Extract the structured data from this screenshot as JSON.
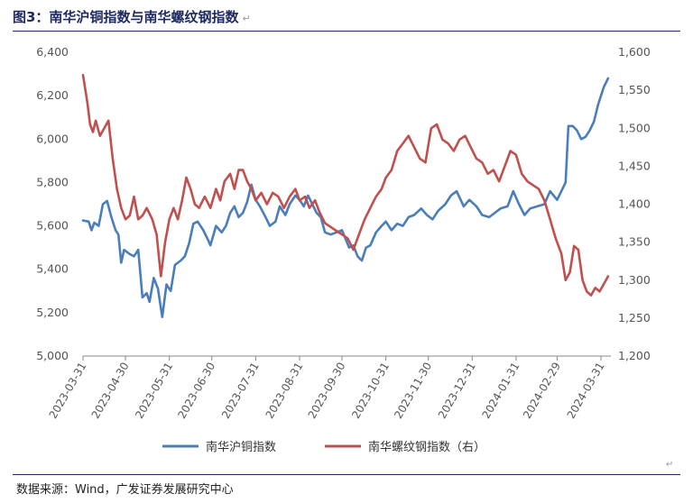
{
  "title": "图3：南华沪铜指数与南华螺纹钢指数",
  "source": "数据来源：Wind，广发证券发展研究中心",
  "para_mark": "↵",
  "chart_data": {
    "type": "line",
    "title": "图3：南华沪铜指数与南华螺纹钢指数",
    "x_ticks": [
      "2023-03-31",
      "2023-04-30",
      "2023-05-31",
      "2023-06-30",
      "2023-07-31",
      "2023-08-31",
      "2023-09-30",
      "2023-10-31",
      "2023-11-30",
      "2023-12-31",
      "2024-01-31",
      "2024-02-29",
      "2024-03-31"
    ],
    "x_range": [
      "2023-03-31",
      "2024-04-07"
    ],
    "y_left": {
      "min": 5000,
      "max": 6400,
      "step": 200,
      "ticks": [
        "5,000",
        "5,200",
        "5,400",
        "5,600",
        "5,800",
        "6,000",
        "6,200",
        "6,400"
      ]
    },
    "y_right": {
      "min": 1200,
      "max": 1600,
      "step": 50,
      "ticks": [
        "1,200",
        "1,250",
        "1,300",
        "1,350",
        "1,400",
        "1,450",
        "1,500",
        "1,550",
        "1,600"
      ]
    },
    "legend_position": "bottom",
    "grid": false,
    "series": [
      {
        "name": "南华沪铜指数",
        "axis": "left",
        "color": "#4a7ebb",
        "points": [
          [
            "2023-03-31",
            5625
          ],
          [
            "2023-04-04",
            5620
          ],
          [
            "2023-04-06",
            5580
          ],
          [
            "2023-04-08",
            5615
          ],
          [
            "2023-04-11",
            5600
          ],
          [
            "2023-04-14",
            5700
          ],
          [
            "2023-04-17",
            5715
          ],
          [
            "2023-04-20",
            5640
          ],
          [
            "2023-04-23",
            5580
          ],
          [
            "2023-04-25",
            5560
          ],
          [
            "2023-04-27",
            5430
          ],
          [
            "2023-04-29",
            5490
          ],
          [
            "2023-05-03",
            5470
          ],
          [
            "2023-05-06",
            5460
          ],
          [
            "2023-05-09",
            5490
          ],
          [
            "2023-05-12",
            5270
          ],
          [
            "2023-05-15",
            5290
          ],
          [
            "2023-05-17",
            5250
          ],
          [
            "2023-05-20",
            5360
          ],
          [
            "2023-05-23",
            5310
          ],
          [
            "2023-05-26",
            5180
          ],
          [
            "2023-05-29",
            5330
          ],
          [
            "2023-06-01",
            5300
          ],
          [
            "2023-06-04",
            5420
          ],
          [
            "2023-06-08",
            5440
          ],
          [
            "2023-06-11",
            5460
          ],
          [
            "2023-06-14",
            5520
          ],
          [
            "2023-06-17",
            5610
          ],
          [
            "2023-06-20",
            5620
          ],
          [
            "2023-06-24",
            5580
          ],
          [
            "2023-06-27",
            5540
          ],
          [
            "2023-06-29",
            5510
          ],
          [
            "2023-07-03",
            5600
          ],
          [
            "2023-07-07",
            5570
          ],
          [
            "2023-07-10",
            5600
          ],
          [
            "2023-07-13",
            5660
          ],
          [
            "2023-07-16",
            5690
          ],
          [
            "2023-07-19",
            5640
          ],
          [
            "2023-07-22",
            5660
          ],
          [
            "2023-07-25",
            5710
          ],
          [
            "2023-07-28",
            5790
          ],
          [
            "2023-07-31",
            5720
          ],
          [
            "2023-08-03",
            5690
          ],
          [
            "2023-08-07",
            5640
          ],
          [
            "2023-08-10",
            5600
          ],
          [
            "2023-08-14",
            5620
          ],
          [
            "2023-08-17",
            5690
          ],
          [
            "2023-08-21",
            5650
          ],
          [
            "2023-08-24",
            5700
          ],
          [
            "2023-08-28",
            5740
          ],
          [
            "2023-08-31",
            5720
          ],
          [
            "2023-09-03",
            5690
          ],
          [
            "2023-09-06",
            5740
          ],
          [
            "2023-09-09",
            5700
          ],
          [
            "2023-09-12",
            5660
          ],
          [
            "2023-09-15",
            5640
          ],
          [
            "2023-09-18",
            5570
          ],
          [
            "2023-09-22",
            5560
          ],
          [
            "2023-09-26",
            5570
          ],
          [
            "2023-09-30",
            5580
          ],
          [
            "2023-10-05",
            5500
          ],
          [
            "2023-10-08",
            5510
          ],
          [
            "2023-10-11",
            5460
          ],
          [
            "2023-10-14",
            5440
          ],
          [
            "2023-10-17",
            5500
          ],
          [
            "2023-10-20",
            5510
          ],
          [
            "2023-10-24",
            5570
          ],
          [
            "2023-10-28",
            5600
          ],
          [
            "2023-10-31",
            5620
          ],
          [
            "2023-11-04",
            5580
          ],
          [
            "2023-11-08",
            5610
          ],
          [
            "2023-11-12",
            5600
          ],
          [
            "2023-11-16",
            5640
          ],
          [
            "2023-11-20",
            5650
          ],
          [
            "2023-11-25",
            5680
          ],
          [
            "2023-11-29",
            5650
          ],
          [
            "2023-12-03",
            5630
          ],
          [
            "2023-12-07",
            5670
          ],
          [
            "2023-12-12",
            5700
          ],
          [
            "2023-12-16",
            5740
          ],
          [
            "2023-12-20",
            5760
          ],
          [
            "2023-12-25",
            5690
          ],
          [
            "2023-12-29",
            5720
          ],
          [
            "2024-01-03",
            5690
          ],
          [
            "2024-01-07",
            5650
          ],
          [
            "2024-01-12",
            5640
          ],
          [
            "2024-01-16",
            5660
          ],
          [
            "2024-01-20",
            5680
          ],
          [
            "2024-01-25",
            5690
          ],
          [
            "2024-01-29",
            5760
          ],
          [
            "2024-02-02",
            5700
          ],
          [
            "2024-02-06",
            5650
          ],
          [
            "2024-02-10",
            5680
          ],
          [
            "2024-02-15",
            5690
          ],
          [
            "2024-02-20",
            5700
          ],
          [
            "2024-02-24",
            5760
          ],
          [
            "2024-02-29",
            5720
          ],
          [
            "2024-03-03",
            5760
          ],
          [
            "2024-03-06",
            5800
          ],
          [
            "2024-03-08",
            6060
          ],
          [
            "2024-03-11",
            6060
          ],
          [
            "2024-03-14",
            6040
          ],
          [
            "2024-03-17",
            6000
          ],
          [
            "2024-03-20",
            6010
          ],
          [
            "2024-03-23",
            6040
          ],
          [
            "2024-03-26",
            6080
          ],
          [
            "2024-03-29",
            6160
          ],
          [
            "2024-04-02",
            6240
          ],
          [
            "2024-04-05",
            6280
          ]
        ]
      },
      {
        "name": "南华螺纹钢指数（右）",
        "axis": "right",
        "color": "#c0504d",
        "points": [
          [
            "2023-03-31",
            1570
          ],
          [
            "2023-04-03",
            1535
          ],
          [
            "2023-04-05",
            1505
          ],
          [
            "2023-04-07",
            1495
          ],
          [
            "2023-04-09",
            1510
          ],
          [
            "2023-04-12",
            1490
          ],
          [
            "2023-04-15",
            1500
          ],
          [
            "2023-04-18",
            1510
          ],
          [
            "2023-04-21",
            1460
          ],
          [
            "2023-04-24",
            1420
          ],
          [
            "2023-04-27",
            1395
          ],
          [
            "2023-04-30",
            1380
          ],
          [
            "2023-05-03",
            1385
          ],
          [
            "2023-05-06",
            1410
          ],
          [
            "2023-05-09",
            1380
          ],
          [
            "2023-05-12",
            1385
          ],
          [
            "2023-05-15",
            1395
          ],
          [
            "2023-05-19",
            1380
          ],
          [
            "2023-05-22",
            1360
          ],
          [
            "2023-05-25",
            1305
          ],
          [
            "2023-05-28",
            1350
          ],
          [
            "2023-05-31",
            1380
          ],
          [
            "2023-06-03",
            1395
          ],
          [
            "2023-06-06",
            1380
          ],
          [
            "2023-06-09",
            1405
          ],
          [
            "2023-06-12",
            1435
          ],
          [
            "2023-06-15",
            1420
          ],
          [
            "2023-06-18",
            1400
          ],
          [
            "2023-06-21",
            1395
          ],
          [
            "2023-06-25",
            1410
          ],
          [
            "2023-06-29",
            1395
          ],
          [
            "2023-07-03",
            1420
          ],
          [
            "2023-07-06",
            1405
          ],
          [
            "2023-07-09",
            1430
          ],
          [
            "2023-07-13",
            1440
          ],
          [
            "2023-07-16",
            1420
          ],
          [
            "2023-07-19",
            1445
          ],
          [
            "2023-07-22",
            1445
          ],
          [
            "2023-07-25",
            1430
          ],
          [
            "2023-07-28",
            1420
          ],
          [
            "2023-07-31",
            1405
          ],
          [
            "2023-08-04",
            1415
          ],
          [
            "2023-08-08",
            1400
          ],
          [
            "2023-08-12",
            1415
          ],
          [
            "2023-08-16",
            1410
          ],
          [
            "2023-08-20",
            1395
          ],
          [
            "2023-08-24",
            1410
          ],
          [
            "2023-08-28",
            1420
          ],
          [
            "2023-08-31",
            1405
          ],
          [
            "2023-09-04",
            1410
          ],
          [
            "2023-09-07",
            1395
          ],
          [
            "2023-09-11",
            1405
          ],
          [
            "2023-09-14",
            1390
          ],
          [
            "2023-09-18",
            1375
          ],
          [
            "2023-09-22",
            1370
          ],
          [
            "2023-09-26",
            1365
          ],
          [
            "2023-09-30",
            1360
          ],
          [
            "2023-10-04",
            1355
          ],
          [
            "2023-10-08",
            1340
          ],
          [
            "2023-10-12",
            1360
          ],
          [
            "2023-10-16",
            1380
          ],
          [
            "2023-10-20",
            1395
          ],
          [
            "2023-10-24",
            1410
          ],
          [
            "2023-10-28",
            1420
          ],
          [
            "2023-10-31",
            1435
          ],
          [
            "2023-11-04",
            1445
          ],
          [
            "2023-11-08",
            1470
          ],
          [
            "2023-11-12",
            1480
          ],
          [
            "2023-11-16",
            1490
          ],
          [
            "2023-11-20",
            1475
          ],
          [
            "2023-11-24",
            1460
          ],
          [
            "2023-11-28",
            1455
          ],
          [
            "2023-12-02",
            1500
          ],
          [
            "2023-12-06",
            1505
          ],
          [
            "2023-12-10",
            1485
          ],
          [
            "2023-12-14",
            1480
          ],
          [
            "2023-12-18",
            1470
          ],
          [
            "2023-12-22",
            1485
          ],
          [
            "2023-12-26",
            1490
          ],
          [
            "2023-12-30",
            1475
          ],
          [
            "2024-01-03",
            1460
          ],
          [
            "2024-01-07",
            1455
          ],
          [
            "2024-01-11",
            1440
          ],
          [
            "2024-01-15",
            1445
          ],
          [
            "2024-01-19",
            1430
          ],
          [
            "2024-01-23",
            1450
          ],
          [
            "2024-01-27",
            1470
          ],
          [
            "2024-01-31",
            1465
          ],
          [
            "2024-02-04",
            1440
          ],
          [
            "2024-02-08",
            1430
          ],
          [
            "2024-02-12",
            1425
          ],
          [
            "2024-02-16",
            1420
          ],
          [
            "2024-02-20",
            1405
          ],
          [
            "2024-02-24",
            1380
          ],
          [
            "2024-02-28",
            1355
          ],
          [
            "2024-03-03",
            1335
          ],
          [
            "2024-03-06",
            1300
          ],
          [
            "2024-03-09",
            1310
          ],
          [
            "2024-03-12",
            1345
          ],
          [
            "2024-03-15",
            1340
          ],
          [
            "2024-03-18",
            1300
          ],
          [
            "2024-03-21",
            1285
          ],
          [
            "2024-03-24",
            1280
          ],
          [
            "2024-03-27",
            1290
          ],
          [
            "2024-03-30",
            1285
          ],
          [
            "2024-04-02",
            1295
          ],
          [
            "2024-04-05",
            1305
          ]
        ]
      }
    ]
  }
}
